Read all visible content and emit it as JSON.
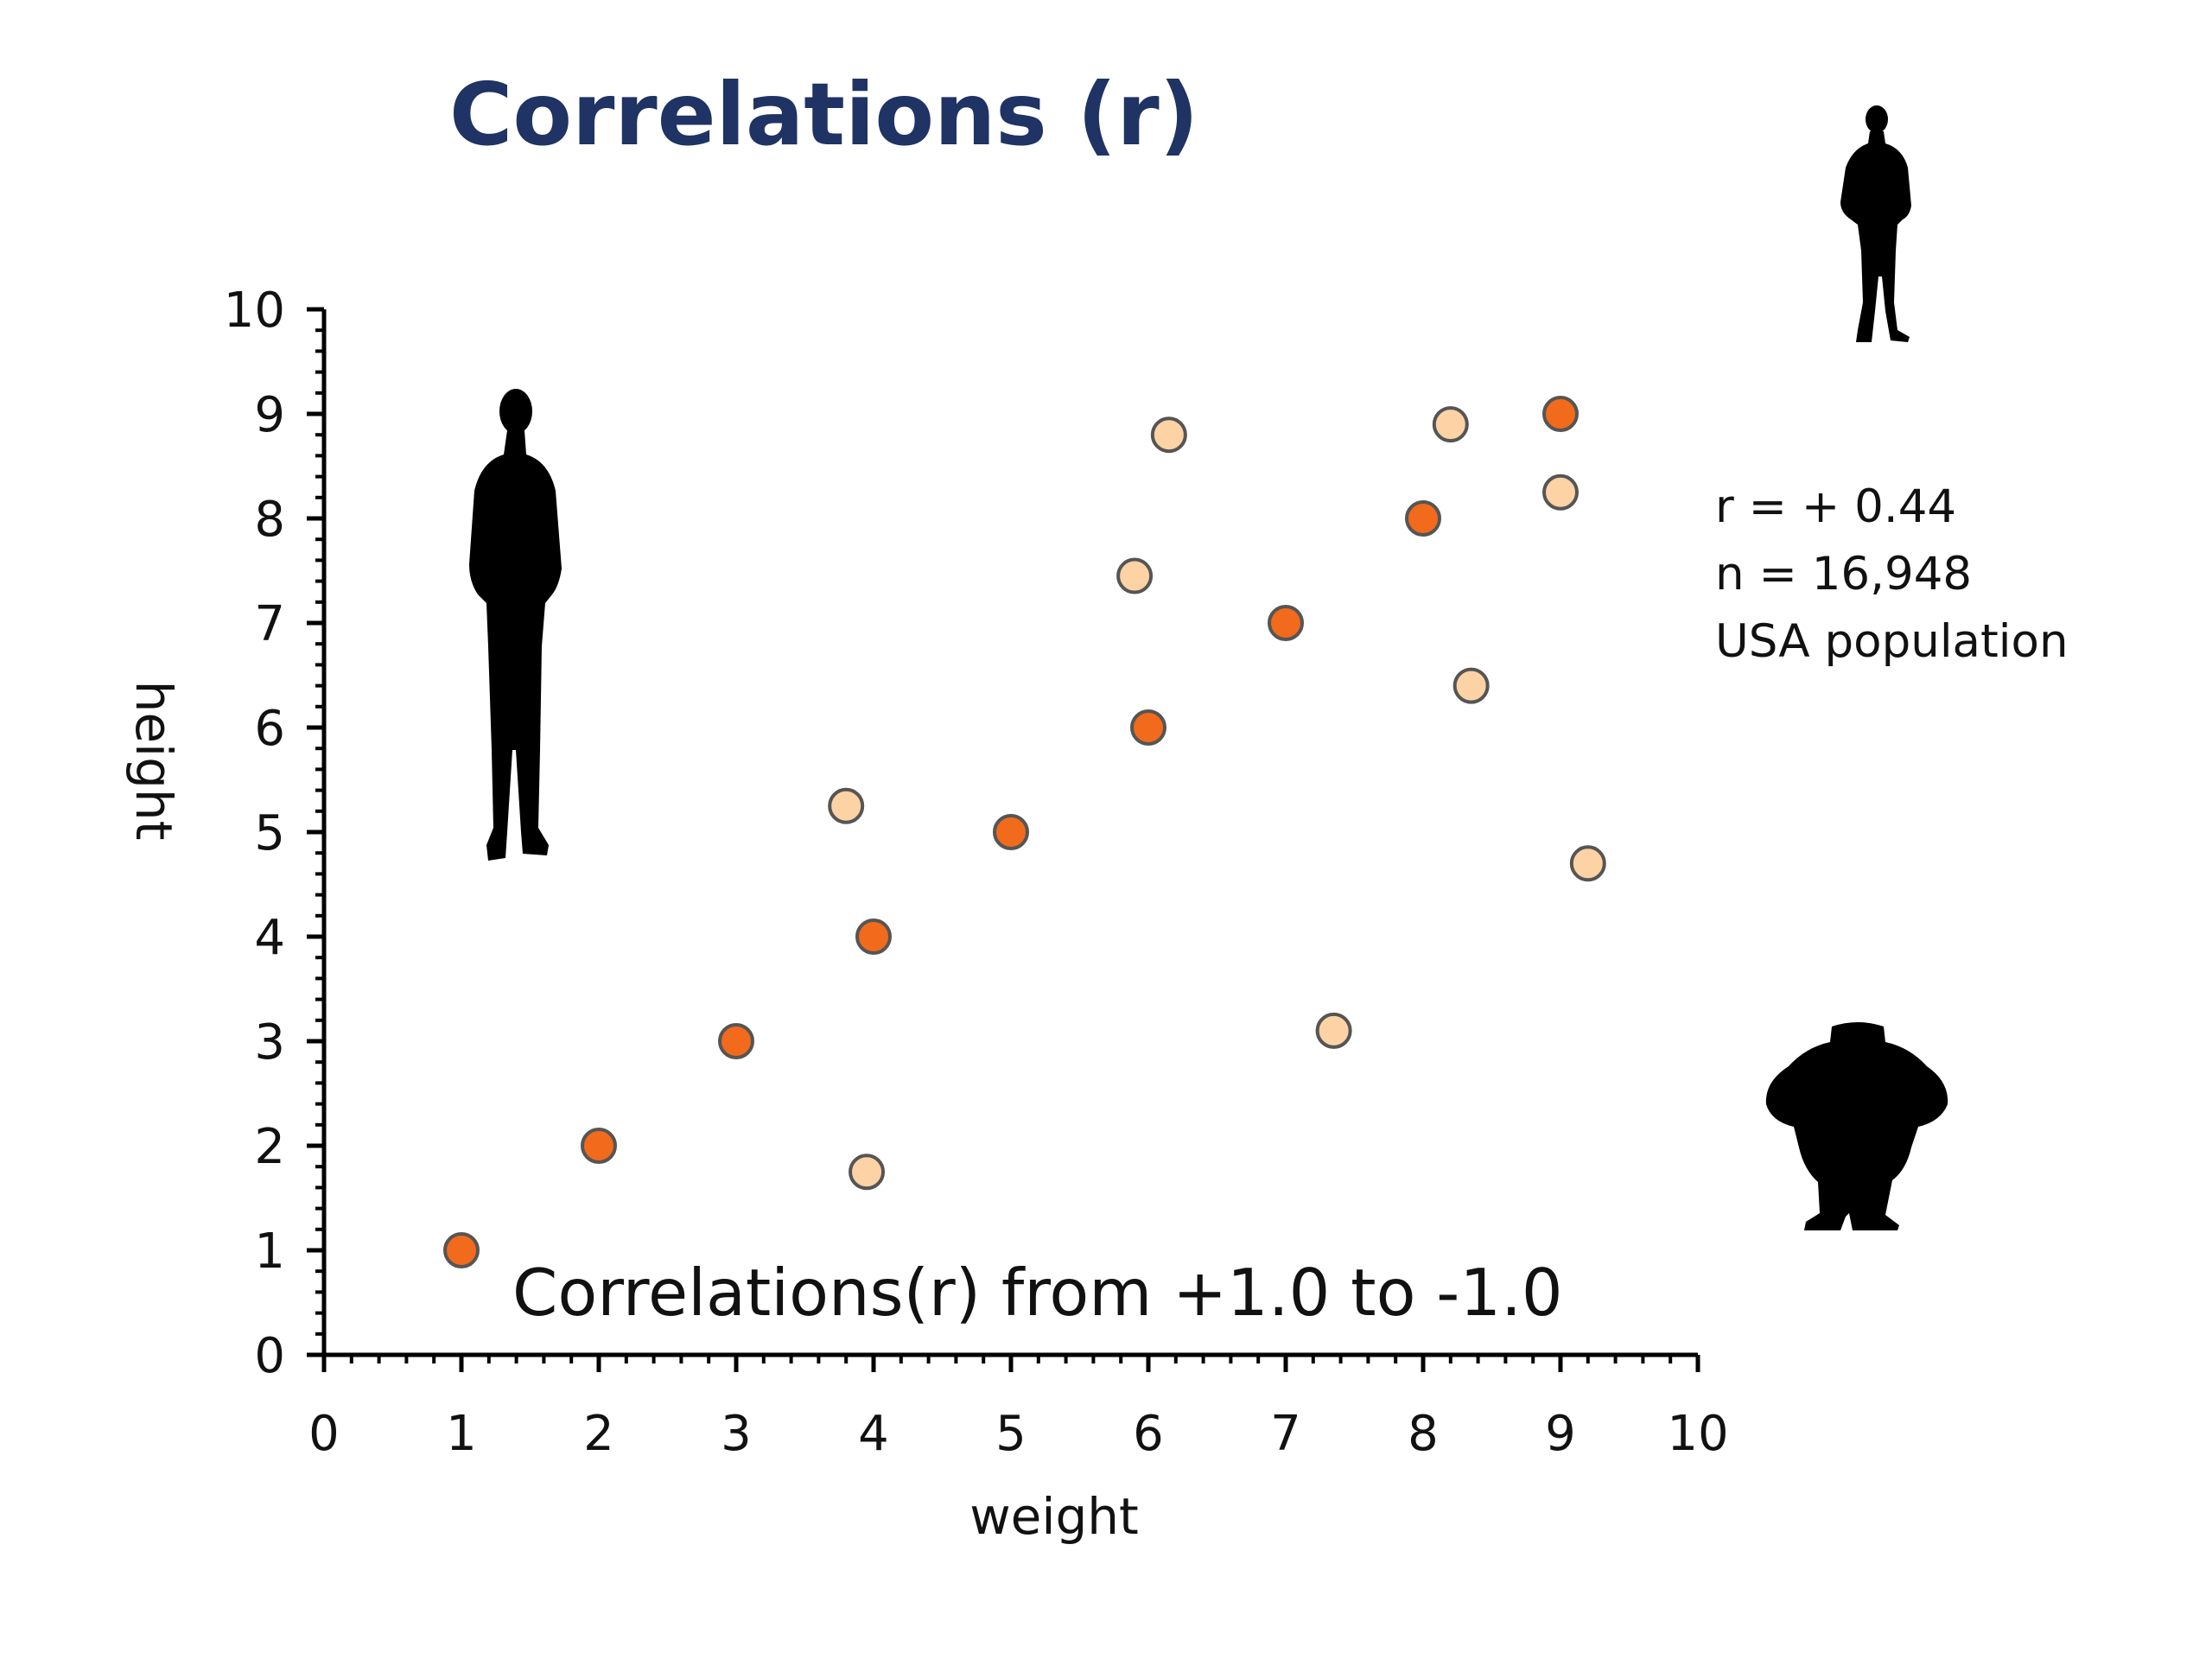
{
  "title": "Correlations (r)",
  "stats": {
    "r": "r = + 0.44",
    "n": "n = 16,948",
    "population": "USA population"
  },
  "subtitle": "Correlations(r) from +1.0 to -1.0",
  "colors": {
    "title": "#1f3364",
    "perfect_series": "#f26a1b",
    "population_series": "#fdd2a4",
    "marker_stroke": "#555555",
    "axis": "#000000"
  },
  "icons": [
    "tall-person-silhouette",
    "short-person-silhouette",
    "wide-person-silhouette"
  ],
  "chart_data": {
    "type": "scatter",
    "xlabel": "weight",
    "ylabel": "height",
    "xlim": [
      0,
      10
    ],
    "ylim": [
      0,
      10
    ],
    "x_ticks": [
      0,
      1,
      2,
      3,
      4,
      5,
      6,
      7,
      8,
      9,
      10
    ],
    "y_ticks": [
      0,
      1,
      2,
      3,
      4,
      5,
      6,
      7,
      8,
      9,
      10
    ],
    "grid": false,
    "series": [
      {
        "color": "#f26a1b",
        "points": [
          [
            1,
            1
          ],
          [
            2,
            2
          ],
          [
            3,
            3
          ],
          [
            4,
            4
          ],
          [
            5,
            5
          ],
          [
            6,
            6
          ],
          [
            7,
            7
          ],
          [
            8,
            8
          ],
          [
            9,
            9
          ]
        ]
      },
      {
        "color": "#fdd2a4",
        "points": [
          [
            3.8,
            5.25
          ],
          [
            3.95,
            1.75
          ],
          [
            5.9,
            7.45
          ],
          [
            6.15,
            8.8
          ],
          [
            7.35,
            3.1
          ],
          [
            8.2,
            8.9
          ],
          [
            8.35,
            6.4
          ],
          [
            9.0,
            8.25
          ],
          [
            9.2,
            4.7
          ]
        ]
      }
    ]
  }
}
